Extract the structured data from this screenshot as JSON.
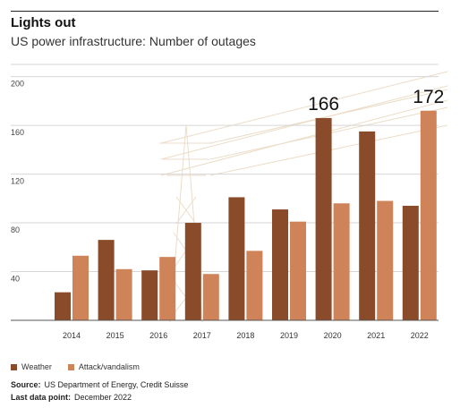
{
  "title": "Lights out",
  "subtitle": "US power infrastructure: Number of outages",
  "colors": {
    "weather": "#8a4b2a",
    "attack": "#cf8359",
    "grid": "#d6d6d6",
    "axis": "#555555"
  },
  "chart_data": {
    "type": "bar",
    "categories": [
      "2014",
      "2015",
      "2016",
      "2017",
      "2018",
      "2019",
      "2020",
      "2021",
      "2022"
    ],
    "series": [
      {
        "name": "Weather",
        "values": [
          23,
          66,
          41,
          80,
          101,
          91,
          166,
          155,
          94
        ]
      },
      {
        "name": "Attack/vandalism",
        "values": [
          53,
          42,
          52,
          38,
          57,
          81,
          96,
          98,
          172
        ]
      }
    ],
    "ylim": [
      0,
      210
    ],
    "yticks": [
      40,
      80,
      120,
      160,
      200
    ],
    "grid": true,
    "legend_position": "bottom-left",
    "annotations": [
      {
        "text": "166",
        "category": "2020",
        "series": 0
      },
      {
        "text": "172",
        "category": "2022",
        "series": 1
      }
    ]
  },
  "legend": {
    "weather": "Weather",
    "attack": "Attack/vandalism"
  },
  "footer": {
    "source_label": "Source:",
    "source_text": "US Department of Energy, Credit Suisse",
    "last_label": "Last data point:",
    "last_text": "December 2022"
  }
}
